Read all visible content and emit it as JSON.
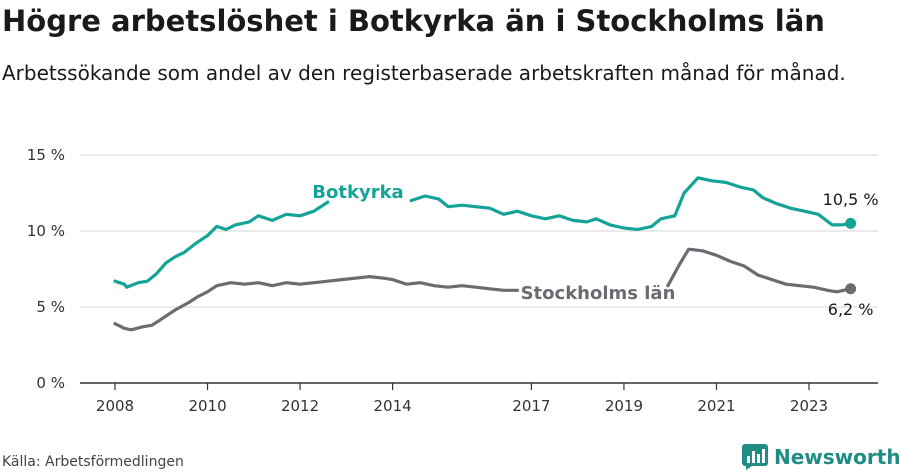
{
  "title": "Högre arbetslöshet i Botkyrka än i Stockholms län",
  "subtitle": "Arbetssökande som andel av den registerbaserade arbetskraften månad för månad.",
  "source": "Källa: Arbetsförmedlingen",
  "brand": "Newsworthy",
  "colors": {
    "botkyrka": "#14a397",
    "stockholm": "#6d6b72",
    "grid": "#dddddd",
    "axis": "#333333",
    "brand": "#1f8d85"
  },
  "chart_data": {
    "type": "line",
    "title": "Högre arbetslöshet i Botkyrka än i Stockholms län",
    "ylim": [
      0,
      15
    ],
    "xlim": [
      2008,
      2024.1
    ],
    "y_ticks": [
      0,
      5,
      10,
      15
    ],
    "y_tick_labels": [
      "0 %",
      "5 %",
      "10 %",
      "15 %"
    ],
    "x_ticks": [
      2008,
      2010,
      2012,
      2014,
      2017,
      2019,
      2021,
      2023
    ],
    "x_tick_labels": [
      "2008",
      "2010",
      "2012",
      "2014",
      "2017",
      "2019",
      "2021",
      "2023"
    ],
    "grid": true,
    "series": [
      {
        "name": "Botkyrka",
        "label": "Botkyrka",
        "end_label": "10,5 %",
        "end_value": 10.5,
        "points": [
          [
            2008.0,
            6.7
          ],
          [
            2008.2,
            6.5
          ],
          [
            2008.25,
            6.3
          ],
          [
            2008.5,
            6.6
          ],
          [
            2008.7,
            6.7
          ],
          [
            2008.9,
            7.2
          ],
          [
            2009.1,
            7.9
          ],
          [
            2009.3,
            8.3
          ],
          [
            2009.5,
            8.6
          ],
          [
            2009.75,
            9.2
          ],
          [
            2010.0,
            9.7
          ],
          [
            2010.2,
            10.3
          ],
          [
            2010.4,
            10.1
          ],
          [
            2010.6,
            10.4
          ],
          [
            2010.9,
            10.6
          ],
          [
            2011.1,
            11.0
          ],
          [
            2011.4,
            10.7
          ],
          [
            2011.7,
            11.1
          ],
          [
            2012.0,
            11.0
          ],
          [
            2012.3,
            11.3
          ],
          [
            2012.6,
            11.9
          ],
          [
            2014.4,
            12.0
          ],
          [
            2014.7,
            12.3
          ],
          [
            2015.0,
            12.1
          ],
          [
            2015.2,
            11.6
          ],
          [
            2015.5,
            11.7
          ],
          [
            2015.8,
            11.6
          ],
          [
            2016.1,
            11.5
          ],
          [
            2016.4,
            11.1
          ],
          [
            2016.7,
            11.3
          ],
          [
            2017.0,
            11.0
          ],
          [
            2017.3,
            10.8
          ],
          [
            2017.6,
            11.0
          ],
          [
            2017.9,
            10.7
          ],
          [
            2018.2,
            10.6
          ],
          [
            2018.4,
            10.8
          ],
          [
            2018.7,
            10.4
          ],
          [
            2019.0,
            10.2
          ],
          [
            2019.3,
            10.1
          ],
          [
            2019.6,
            10.3
          ],
          [
            2019.8,
            10.8
          ],
          [
            2020.1,
            11.0
          ],
          [
            2020.3,
            12.5
          ],
          [
            2020.6,
            13.5
          ],
          [
            2020.9,
            13.3
          ],
          [
            2021.2,
            13.2
          ],
          [
            2021.5,
            12.9
          ],
          [
            2021.8,
            12.7
          ],
          [
            2022.0,
            12.2
          ],
          [
            2022.3,
            11.8
          ],
          [
            2022.6,
            11.5
          ],
          [
            2022.9,
            11.3
          ],
          [
            2023.2,
            11.1
          ],
          [
            2023.5,
            10.4
          ],
          [
            2023.7,
            10.4
          ],
          [
            2023.9,
            10.5
          ]
        ]
      },
      {
        "name": "Stockholms län",
        "label": "Stockholms län",
        "end_label": "6,2 %",
        "end_value": 6.2,
        "points": [
          [
            2008.0,
            3.9
          ],
          [
            2008.2,
            3.6
          ],
          [
            2008.35,
            3.5
          ],
          [
            2008.6,
            3.7
          ],
          [
            2008.8,
            3.8
          ],
          [
            2009.0,
            4.2
          ],
          [
            2009.3,
            4.8
          ],
          [
            2009.6,
            5.3
          ],
          [
            2009.8,
            5.7
          ],
          [
            2010.0,
            6.0
          ],
          [
            2010.2,
            6.4
          ],
          [
            2010.5,
            6.6
          ],
          [
            2010.8,
            6.5
          ],
          [
            2011.1,
            6.6
          ],
          [
            2011.4,
            6.4
          ],
          [
            2011.7,
            6.6
          ],
          [
            2012.0,
            6.5
          ],
          [
            2012.3,
            6.6
          ],
          [
            2012.6,
            6.7
          ],
          [
            2012.9,
            6.8
          ],
          [
            2013.2,
            6.9
          ],
          [
            2013.5,
            7.0
          ],
          [
            2013.8,
            6.9
          ],
          [
            2014.0,
            6.8
          ],
          [
            2014.3,
            6.5
          ],
          [
            2014.6,
            6.6
          ],
          [
            2014.9,
            6.4
          ],
          [
            2015.2,
            6.3
          ],
          [
            2015.5,
            6.4
          ],
          [
            2015.8,
            6.3
          ],
          [
            2016.1,
            6.2
          ],
          [
            2016.4,
            6.1
          ],
          [
            2016.7,
            6.1
          ],
          [
            2019.95,
            6.4
          ],
          [
            2020.2,
            7.8
          ],
          [
            2020.4,
            8.8
          ],
          [
            2020.7,
            8.7
          ],
          [
            2021.0,
            8.4
          ],
          [
            2021.3,
            8.0
          ],
          [
            2021.6,
            7.7
          ],
          [
            2021.9,
            7.1
          ],
          [
            2022.2,
            6.8
          ],
          [
            2022.5,
            6.5
          ],
          [
            2022.8,
            6.4
          ],
          [
            2023.1,
            6.3
          ],
          [
            2023.4,
            6.1
          ],
          [
            2023.6,
            6.0
          ],
          [
            2023.9,
            6.2
          ]
        ]
      }
    ]
  }
}
